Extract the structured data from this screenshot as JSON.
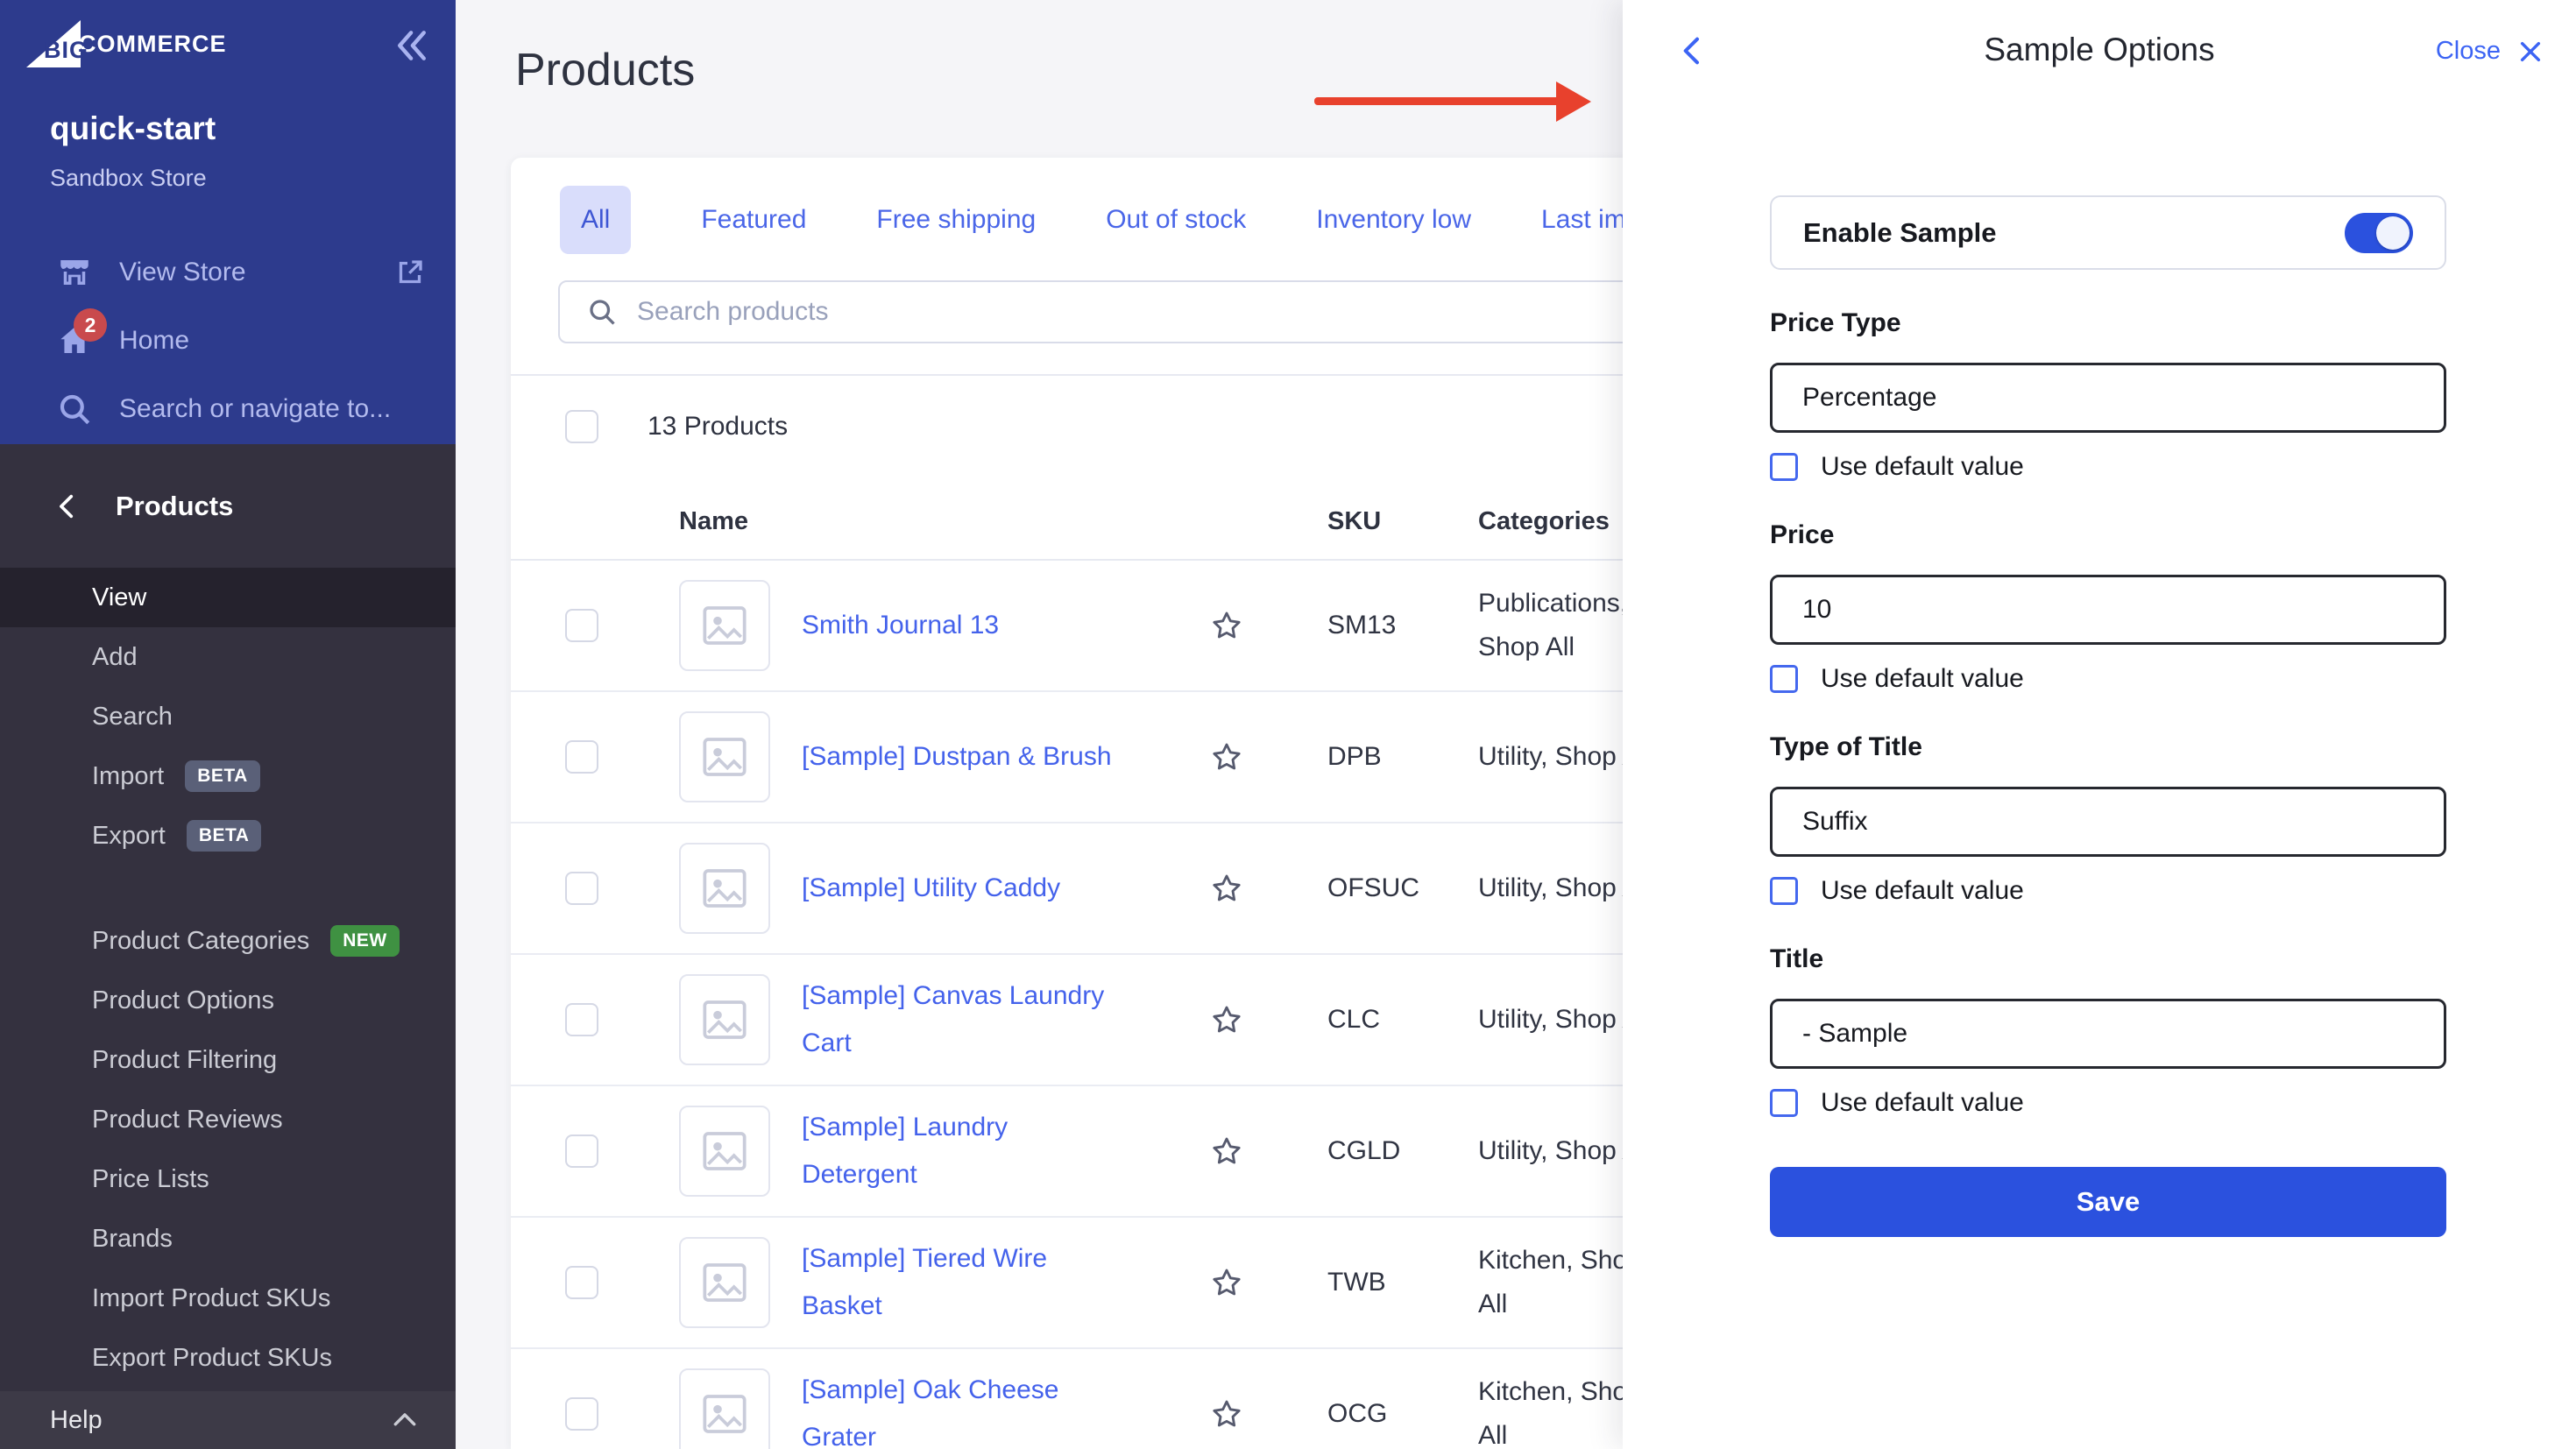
{
  "brand": {
    "logo_text_1": "BIG",
    "logo_text_2": "COMMERCE"
  },
  "store": {
    "name": "quick-start",
    "type": "Sandbox Store"
  },
  "sidebar": {
    "top_items": [
      {
        "label": "View Store",
        "icon": "storefront-icon",
        "trailing_icon": "external-link-icon"
      },
      {
        "label": "Home",
        "icon": "home-icon",
        "badge": "2"
      },
      {
        "label": "Search or navigate to...",
        "icon": "search-icon"
      }
    ],
    "section": {
      "title": "Products",
      "groups": [
        [
          {
            "label": "View",
            "active": true
          },
          {
            "label": "Add"
          },
          {
            "label": "Search"
          },
          {
            "label": "Import",
            "badge": "BETA"
          },
          {
            "label": "Export",
            "badge": "BETA"
          }
        ],
        [
          {
            "label": "Product Categories",
            "badge": "NEW"
          },
          {
            "label": "Product Options"
          },
          {
            "label": "Product Filtering"
          },
          {
            "label": "Product Reviews"
          },
          {
            "label": "Price Lists"
          },
          {
            "label": "Brands"
          },
          {
            "label": "Import Product SKUs"
          },
          {
            "label": "Export Product SKUs"
          }
        ]
      ]
    },
    "help_label": "Help"
  },
  "main": {
    "title": "Products",
    "tabs": [
      {
        "label": "All",
        "active": true
      },
      {
        "label": "Featured"
      },
      {
        "label": "Free shipping"
      },
      {
        "label": "Out of stock"
      },
      {
        "label": "Inventory low"
      },
      {
        "label": "Last im"
      }
    ],
    "search_placeholder": "Search products",
    "count_label": "13 Products",
    "table": {
      "columns": [
        "Name",
        "SKU",
        "Categories"
      ],
      "rows": [
        {
          "name": "Smith Journal 13",
          "sku": "SM13",
          "categories": "Publications, Shop All"
        },
        {
          "name": "[Sample] Dustpan & Brush",
          "sku": "DPB",
          "categories": "Utility, Shop All"
        },
        {
          "name": "[Sample] Utility Caddy",
          "sku": "OFSUC",
          "categories": "Utility, Shop All"
        },
        {
          "name": "[Sample] Canvas Laundry Cart",
          "sku": "CLC",
          "categories": "Utility, Shop All"
        },
        {
          "name": "[Sample] Laundry Detergent",
          "sku": "CGLD",
          "categories": "Utility, Shop All"
        },
        {
          "name": "[Sample] Tiered Wire Basket",
          "sku": "TWB",
          "categories": "Kitchen, Shop All"
        },
        {
          "name": "[Sample] Oak Cheese Grater",
          "sku": "OCG",
          "categories": "Kitchen, Shop All"
        }
      ]
    }
  },
  "annotation": {
    "type": "red-arrow",
    "color": "#E8412D"
  },
  "panel": {
    "title": "Sample Options",
    "close_label": "Close",
    "toggle": {
      "label": "Enable Sample",
      "on": true
    },
    "fields": [
      {
        "label": "Price Type",
        "value": "Percentage",
        "checkbox_label": "Use default value",
        "checked": false
      },
      {
        "label": "Price",
        "value": "10",
        "checkbox_label": "Use default value",
        "checked": false
      },
      {
        "label": "Type of Title",
        "value": "Suffix",
        "checkbox_label": "Use default value",
        "checked": false
      },
      {
        "label": "Title",
        "value": "- Sample",
        "checkbox_label": "Use default value",
        "checked": false
      }
    ],
    "save_label": "Save"
  },
  "colors": {
    "sidebar_blue": "#2D3B8D",
    "sidebar_dark": "#34313F",
    "accent_blue": "#3C64F4",
    "link_blue": "#4462EB",
    "save_blue": "#2B51DE",
    "active_tab_bg": "#D9DDFB",
    "badge_red": "#C94A4D",
    "badge_green": "#3F9142",
    "badge_gray": "#5A6078",
    "annotation_red": "#E8412D"
  }
}
